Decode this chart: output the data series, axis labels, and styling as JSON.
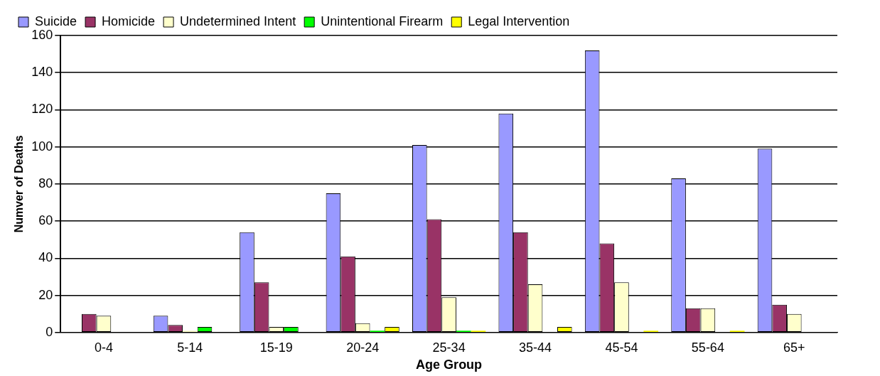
{
  "chart_data": {
    "type": "bar",
    "xlabel": "Age Group",
    "ylabel": "Numver of Deaths",
    "categories": [
      "0-4",
      "5-14",
      "15-19",
      "20-24",
      "25-34",
      "35-44",
      "45-54",
      "55-64",
      "65+"
    ],
    "series": [
      {
        "name": "Suicide",
        "color": "#9999ff",
        "values": [
          0,
          9,
          54,
          75,
          101,
          118,
          152,
          83,
          99
        ]
      },
      {
        "name": "Homicide",
        "color": "#993366",
        "values": [
          10,
          4,
          27,
          41,
          61,
          54,
          48,
          13,
          15
        ]
      },
      {
        "name": "Undetermined Intent",
        "color": "#ffffcc",
        "values": [
          9,
          1,
          3,
          5,
          19,
          26,
          27,
          13,
          10
        ]
      },
      {
        "name": "Unintentional Firearm",
        "color": "#00ff00",
        "values": [
          0,
          3,
          3,
          1,
          1,
          0,
          0,
          0,
          0
        ]
      },
      {
        "name": "Legal Intervention",
        "color": "#ffff00",
        "values": [
          0,
          0,
          0,
          3,
          1,
          3,
          1,
          1,
          0
        ]
      }
    ],
    "ylim": [
      0,
      160
    ],
    "yticks": [
      0,
      20,
      40,
      60,
      80,
      100,
      120,
      140,
      160
    ],
    "grid": "y",
    "legend": "top"
  }
}
